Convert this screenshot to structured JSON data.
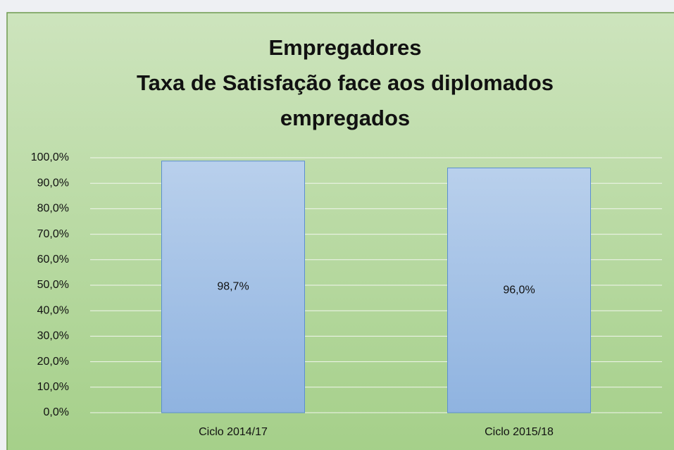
{
  "chart_data": {
    "type": "bar",
    "title": [
      "Empregadores",
      "Taxa de Satisfação face aos diplomados",
      "empregados"
    ],
    "categories": [
      "Ciclo 2014/17",
      "Ciclo 2015/18"
    ],
    "values": [
      98.7,
      96.0
    ],
    "value_labels": [
      "98,7%",
      "96,0%"
    ],
    "color": "#a9c5e8",
    "ylim": [
      0,
      100
    ],
    "yticks": [
      {
        "value": 0,
        "label": "0,0%"
      },
      {
        "value": 10,
        "label": "10,0%"
      },
      {
        "value": 20,
        "label": "20,0%"
      },
      {
        "value": 30,
        "label": "30,0%"
      },
      {
        "value": 40,
        "label": "40,0%"
      },
      {
        "value": 50,
        "label": "50,0%"
      },
      {
        "value": 60,
        "label": "60,0%"
      },
      {
        "value": 70,
        "label": "70,0%"
      },
      {
        "value": 80,
        "label": "80,0%"
      },
      {
        "value": 90,
        "label": "90,0%"
      },
      {
        "value": 100,
        "label": "100,0%"
      }
    ],
    "grid": true
  }
}
